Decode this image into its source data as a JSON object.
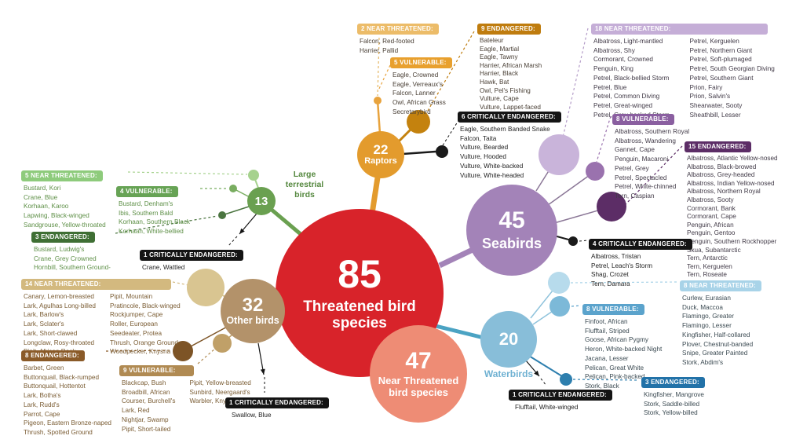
{
  "center": {
    "count": "85",
    "label": "Threatened bird species",
    "color": "#d8232a"
  },
  "near_threatened_total": {
    "count": "47",
    "label": "Near Threatened bird species",
    "color": "#ee8c75"
  },
  "groups": [
    {
      "id": "large-terrestrial-birds",
      "count": "13",
      "name": "Large terrestrial birds",
      "color": "#6aa050",
      "sections": [
        {
          "label": "5 NEAR THREATENED:",
          "species": [
            "Bustard, Kori",
            "Crane, Blue",
            "Korhaan, Karoo",
            "Lapwing, Black-winged",
            "Sandgrouse, Yellow-throated"
          ]
        },
        {
          "label": "4 VULNERABLE:",
          "species": [
            "Bustard, Denham's",
            "Ibis, Southern Bald",
            "Korhaan, Southern Black",
            "Korhaan, White-bellied"
          ]
        },
        {
          "label": "3 ENDANGERED:",
          "species": [
            "Bustard, Ludwig's",
            "Crane, Grey Crowned",
            "Hornbill, Southern Ground-"
          ]
        },
        {
          "label": "1 CRITICALLY ENDANGERED:",
          "species": [
            "Crane, Wattled"
          ]
        }
      ]
    },
    {
      "id": "raptors",
      "count": "22",
      "name": "Raptors",
      "color": "#e39b2d",
      "sections": [
        {
          "label": "2 NEAR THREATENED:",
          "species": [
            "Falcon, Red-footed",
            "Harrier, Pallid"
          ]
        },
        {
          "label": "5 VULNERABLE:",
          "species": [
            "Eagle, Crowned",
            "Eagle, Verreaux's",
            "Falcon, Lanner",
            "Owl, African Grass",
            "Secretarybird"
          ]
        },
        {
          "label": "9 ENDANGERED:",
          "species": [
            "Bateleur",
            "Eagle, Martial",
            "Eagle, Tawny",
            "Harrier, African Marsh",
            "Harrier, Black",
            "Hawk, Bat",
            "Owl, Pel's Fishing",
            "Vulture, Cape",
            "Vulture, Lappet-faced"
          ]
        },
        {
          "label": "6 CRITICALLY ENDANGERED:",
          "species": [
            "Eagle, Southern Banded Snake",
            "Falcon, Taita",
            "Vulture, Bearded",
            "Vulture, Hooded",
            "Vulture, White-backed",
            "Vulture, White-headed"
          ]
        }
      ]
    },
    {
      "id": "seabirds",
      "count": "45",
      "name": "Seabirds",
      "color": "#a383b8",
      "sections": [
        {
          "label": "18 NEAR THREATENED:",
          "species": [
            "Albatross, Light-mantled",
            "Albatross, Shy",
            "Cormorant, Crowned",
            "Penguin, King",
            "Petrel, Black-bellied Storm",
            "Petrel, Blue",
            "Petrel, Common Diving",
            "Petrel, Great-winged",
            "Petrel, Grey-backed Storm",
            "Petrel, Kerguelen",
            "Petrel, Northern Giant",
            "Petrel, Soft-plumaged",
            "Petrel, South Georgian Diving",
            "Petrel, Southern Giant",
            "Prion, Fairy",
            "Prion, Salvin's",
            "Shearwater, Sooty",
            "Sheathbill, Lesser"
          ]
        },
        {
          "label": "8 VULNERABLE:",
          "species": [
            "Albatross, Southern Royal",
            "Albatross, Wandering",
            "Gannet, Cape",
            "Penguin, Macaroni",
            "Petrel, Grey",
            "Petrel, Spectacled",
            "Petrel, White-chinned",
            "Tern, Caspian"
          ]
        },
        {
          "label": "15 ENDANGERED:",
          "species": [
            "Albatross, Atlantic Yellow-nosed",
            "Albatross, Black-browed",
            "Albatross, Grey-headed",
            "Albatross, Indian Yellow-nosed",
            "Albatross, Northern Royal",
            "Albatross, Sooty",
            "Cormorant, Bank",
            "Cormorant, Cape",
            "Penguin, African",
            "Penguin, Gentoo",
            "Penguin, Southern Rockhopper",
            "Skua, Subantarctic",
            "Tern, Antarctic",
            "Tern, Kerguelen",
            "Tern, Roseate"
          ]
        },
        {
          "label": "4 CRITICALLY ENDANGERED:",
          "species": [
            "Albatross, Tristan",
            "Petrel, Leach's Storm",
            "Shag, Crozet",
            "Tern, Damara"
          ]
        }
      ]
    },
    {
      "id": "waterbirds",
      "count": "20",
      "name": "Waterbirds",
      "color": "#88bed9",
      "sections": [
        {
          "label": "8 NEAR THREATENED:",
          "species": [
            "Curlew, Eurasian",
            "Duck, Maccoa",
            "Flamingo, Greater",
            "Flamingo, Lesser",
            "Kingfisher, Half-collared",
            "Plover, Chestnut-banded",
            "Snipe, Greater Painted",
            "Stork, Abdim's"
          ]
        },
        {
          "label": "8 VULNERABLE:",
          "species": [
            "Finfoot, African",
            "Flufftail, Striped",
            "Goose, African Pygmy",
            "Heron, White-backed Night",
            "Jacana, Lesser",
            "Pelican, Great White",
            "Pelican, Pink-backed",
            "Stork, Black"
          ]
        },
        {
          "label": "3 ENDANGERED:",
          "species": [
            "Kingfisher, Mangrove",
            "Stork, Saddle-billed",
            "Stork, Yellow-billed"
          ]
        },
        {
          "label": "1 CRITICALLY ENDANGERED:",
          "species": [
            "Flufftail, White-winged"
          ]
        }
      ]
    },
    {
      "id": "other-birds",
      "count": "32",
      "name": "Other birds",
      "color": "#b3926a",
      "sections": [
        {
          "label": "14 NEAR THREATENED:",
          "species": [
            "Canary, Lemon-breasted",
            "Lark, Agulhas Long-billed",
            "Lark, Barlow's",
            "Lark, Sclater's",
            "Lark, Short-clawed",
            "Longclaw, Rosy-throated",
            "Pipit, African Rock",
            "Pipit, Mountain",
            "Pratincole, Black-winged",
            "Rockjumper, Cape",
            "Roller, European",
            "Seedeater, Protea",
            "Thrush, Orange Ground",
            "Woodpecker, Knysna"
          ]
        },
        {
          "label": "9 VULNERABLE:",
          "species": [
            "Blackcap, Bush",
            "Broadbill, African",
            "Courser, Burchell's",
            "Lark, Red",
            "Nightjar, Swamp",
            "Pipit, Short-tailed",
            "Pipit, Yellow-breasted",
            "Sunbird, Neergaard's",
            "Warbler, Knysna"
          ]
        },
        {
          "label": "8 ENDANGERED:",
          "species": [
            "Barbet, Green",
            "Buttonquail, Black-rumped",
            "Buttonquail, Hottentot",
            "Lark, Botha's",
            "Lark, Rudd's",
            "Parrot, Cape",
            "Pigeon, Eastern Bronze-naped",
            "Thrush, Spotted Ground"
          ]
        },
        {
          "label": "1 CRITICALLY ENDANGERED:",
          "species": [
            "Swallow, Blue"
          ]
        }
      ]
    }
  ]
}
